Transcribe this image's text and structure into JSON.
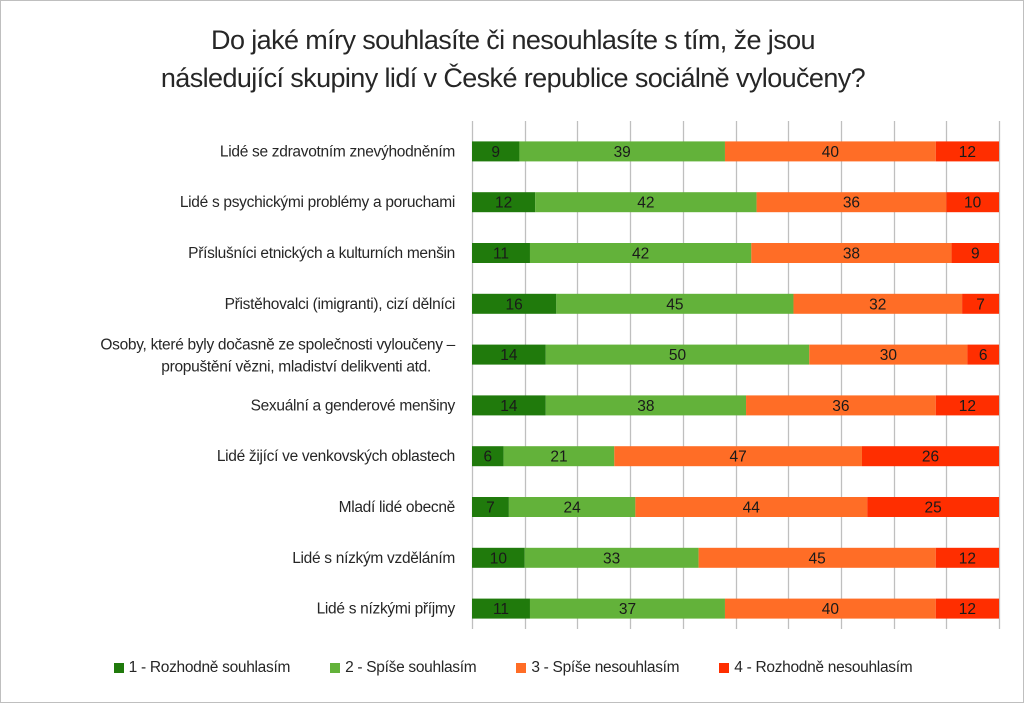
{
  "chart_data": {
    "type": "bar",
    "orientation": "horizontal",
    "stacked": true,
    "title": "Do jaké míry souhlasíte či nesouhlasíte s tím, že jsou následující skupiny lidí v České republice sociálně vyloučeny?",
    "title_lines": [
      "Do jaké míry souhlasíte či nesouhlasíte s tím, že jsou",
      "následující skupiny lidí v České republice sociálně vyloučeny?"
    ],
    "xlabel": "",
    "ylabel": "",
    "xlim": [
      0,
      100
    ],
    "grid": true,
    "legend_position": "bottom",
    "categories": [
      [
        "Lidé se zdravotním znevýhodněním"
      ],
      [
        "Lidé s psychickými problémy a poruchami"
      ],
      [
        "Příslušníci etnických a kulturních menšin"
      ],
      [
        "Přistěhovalci (imigranti), cizí dělníci"
      ],
      [
        "Osoby, které byly dočasně ze společnosti vyloučeny –",
        "propuštění vězni, mladiství delikventi atd."
      ],
      [
        "Sexuální a genderové menšiny"
      ],
      [
        "Lidé žijící ve venkovských oblastech"
      ],
      [
        "Mladí lidé obecně"
      ],
      [
        "Lidé s nízkým vzděláním"
      ],
      [
        "Lidé s nízkými příjmy"
      ]
    ],
    "series": [
      {
        "name": "1 - Rozhodně souhlasím",
        "color": "#207a0c",
        "values": [
          9,
          12,
          11,
          16,
          14,
          14,
          6,
          7,
          10,
          11
        ]
      },
      {
        "name": "2 - Spíše souhlasím",
        "color": "#63b23a",
        "values": [
          39,
          42,
          42,
          45,
          50,
          38,
          21,
          24,
          33,
          37
        ]
      },
      {
        "name": "3 - Spíše nesouhlasím",
        "color": "#ff6d26",
        "values": [
          40,
          36,
          38,
          32,
          30,
          36,
          47,
          44,
          45,
          40
        ]
      },
      {
        "name": "4 - Rozhodně nesouhlasím",
        "color": "#ff2e00",
        "values": [
          12,
          10,
          9,
          7,
          6,
          12,
          26,
          25,
          12,
          12
        ]
      }
    ]
  }
}
